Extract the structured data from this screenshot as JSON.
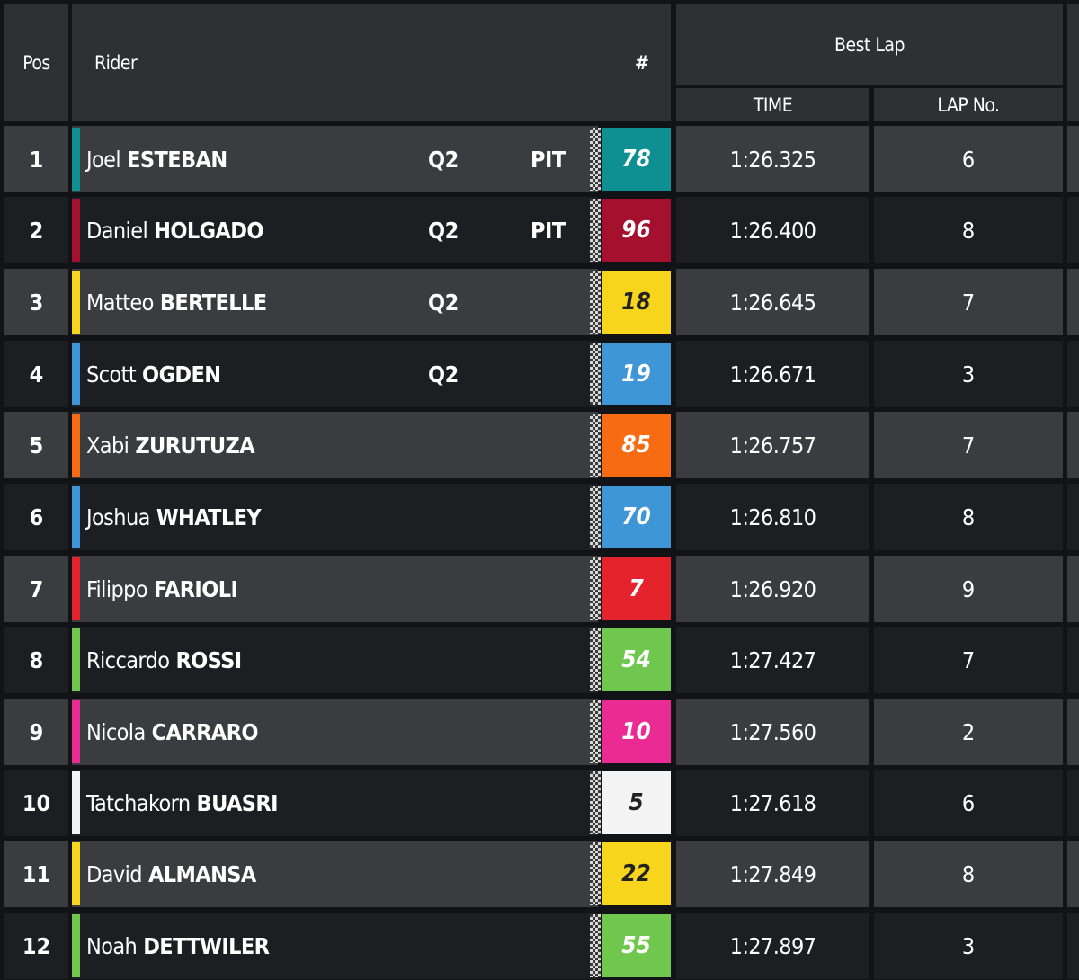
{
  "header": {
    "pos": "Pos",
    "rider": "Rider",
    "number": "#",
    "best_lap": "Best Lap",
    "time": "TIME",
    "lap_no": "LAP No."
  },
  "rows": [
    {
      "pos": "1",
      "first": "Joel",
      "last": "ESTEBAN",
      "q2": "Q2",
      "pit": "PIT",
      "num": "78",
      "color": "#0e8f91",
      "num_text_color": "#ffffff",
      "time": "1:26.325",
      "lap": "6"
    },
    {
      "pos": "2",
      "first": "Daniel",
      "last": "HOLGADO",
      "q2": "Q2",
      "pit": "PIT",
      "num": "96",
      "color": "#a4102e",
      "num_text_color": "#ffffff",
      "time": "1:26.400",
      "lap": "8"
    },
    {
      "pos": "3",
      "first": "Matteo",
      "last": "BERTELLE",
      "q2": "Q2",
      "pit": "",
      "num": "18",
      "color": "#f7d51d",
      "num_text_color": "#222222",
      "time": "1:26.645",
      "lap": "7"
    },
    {
      "pos": "4",
      "first": "Scott",
      "last": "OGDEN",
      "q2": "Q2",
      "pit": "",
      "num": "19",
      "color": "#3e96d6",
      "num_text_color": "#ffffff",
      "time": "1:26.671",
      "lap": "3"
    },
    {
      "pos": "5",
      "first": "Xabi",
      "last": "ZURUTUZA",
      "q2": "",
      "pit": "",
      "num": "85",
      "color": "#f76c12",
      "num_text_color": "#ffffff",
      "time": "1:26.757",
      "lap": "7"
    },
    {
      "pos": "6",
      "first": "Joshua",
      "last": "WHATLEY",
      "q2": "",
      "pit": "",
      "num": "70",
      "color": "#3e96d6",
      "num_text_color": "#ffffff",
      "time": "1:26.810",
      "lap": "8"
    },
    {
      "pos": "7",
      "first": "Filippo",
      "last": "FARIOLI",
      "q2": "",
      "pit": "",
      "num": "7",
      "color": "#e5232c",
      "num_text_color": "#ffffff",
      "time": "1:26.920",
      "lap": "9"
    },
    {
      "pos": "8",
      "first": "Riccardo",
      "last": "ROSSI",
      "q2": "",
      "pit": "",
      "num": "54",
      "color": "#6fc84d",
      "num_text_color": "#ffffff",
      "time": "1:27.427",
      "lap": "7"
    },
    {
      "pos": "9",
      "first": "Nicola",
      "last": "CARRARO",
      "q2": "",
      "pit": "",
      "num": "10",
      "color": "#ea2b93",
      "num_text_color": "#ffffff",
      "time": "1:27.560",
      "lap": "2"
    },
    {
      "pos": "10",
      "first": "Tatchakorn",
      "last": "BUASRI",
      "q2": "",
      "pit": "",
      "num": "5",
      "color": "#f4f4f4",
      "num_text_color": "#222222",
      "time": "1:27.618",
      "lap": "6"
    },
    {
      "pos": "11",
      "first": "David",
      "last": "ALMANSA",
      "q2": "",
      "pit": "",
      "num": "22",
      "color": "#f7d51d",
      "num_text_color": "#222222",
      "time": "1:27.849",
      "lap": "8"
    },
    {
      "pos": "12",
      "first": "Noah",
      "last": "DETTWILER",
      "q2": "",
      "pit": "",
      "num": "55",
      "color": "#6fc84d",
      "num_text_color": "#ffffff",
      "time": "1:27.897",
      "lap": "3"
    }
  ]
}
